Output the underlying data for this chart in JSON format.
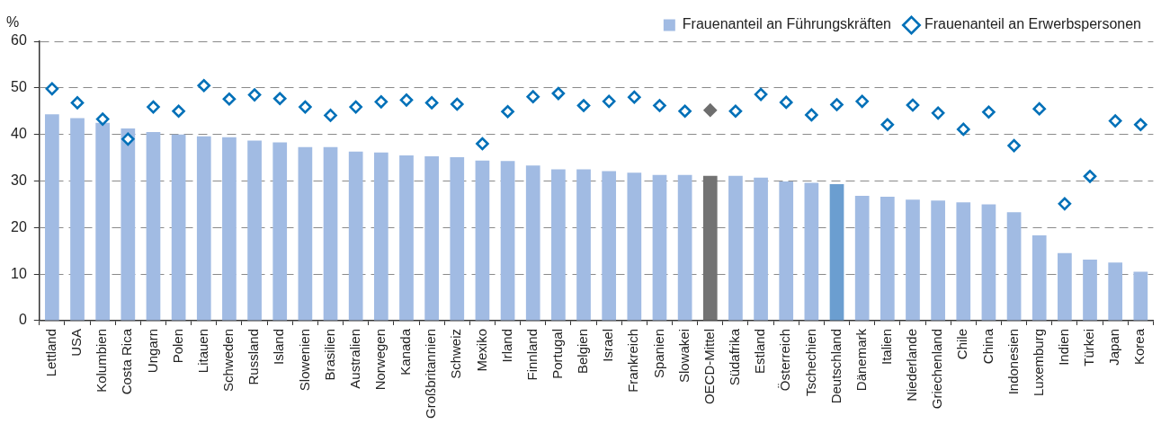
{
  "chart_data": {
    "type": "bar",
    "ylabel": "%",
    "categories": [
      "Lettland",
      "USA",
      "Kolumbien",
      "Costa Rica",
      "Ungarn",
      "Polen",
      "Litauen",
      "Schweden",
      "Russland",
      "Island",
      "Slowenien",
      "Brasilien",
      "Australien",
      "Norwegen",
      "Kanada",
      "Großbritannien",
      "Schweiz",
      "Mexiko",
      "Irland",
      "Finnland",
      "Portugal",
      "Belgien",
      "Israel",
      "Frankreich",
      "Spanien",
      "Slowakei",
      "OECD-Mittel",
      "Südafrika",
      "Estland",
      "Österreich",
      "Tschechien",
      "Deutschland",
      "Dänemark",
      "Italien",
      "Niederlande",
      "Griechenland",
      "Chile",
      "China",
      "Indonesien",
      "Luxemburg",
      "Indien",
      "Türkei",
      "Japan",
      "Korea"
    ],
    "series": [
      {
        "name": "Frauenanteil an Führungskräften",
        "color": "#a1bbe3",
        "colors": [
          "#a1bbe3",
          "#a1bbe3",
          "#a1bbe3",
          "#a1bbe3",
          "#a1bbe3",
          "#a1bbe3",
          "#a1bbe3",
          "#a1bbe3",
          "#a1bbe3",
          "#a1bbe3",
          "#a1bbe3",
          "#a1bbe3",
          "#a1bbe3",
          "#a1bbe3",
          "#a1bbe3",
          "#a1bbe3",
          "#a1bbe3",
          "#a1bbe3",
          "#a1bbe3",
          "#a1bbe3",
          "#a1bbe3",
          "#a1bbe3",
          "#a1bbe3",
          "#a1bbe3",
          "#a1bbe3",
          "#a1bbe3",
          "#737373",
          "#a1bbe3",
          "#a1bbe3",
          "#a1bbe3",
          "#a1bbe3",
          "#6b9ed0",
          "#a1bbe3",
          "#a1bbe3",
          "#a1bbe3",
          "#a1bbe3",
          "#a1bbe3",
          "#a1bbe3",
          "#a1bbe3",
          "#a1bbe3",
          "#a1bbe3",
          "#a1bbe3",
          "#a1bbe3",
          "#a1bbe3"
        ],
        "values": [
          44.3,
          43.5,
          42.5,
          41.3,
          40.5,
          40.0,
          39.6,
          39.4,
          38.7,
          38.3,
          37.3,
          37.3,
          36.3,
          36.1,
          35.5,
          35.3,
          35.1,
          34.4,
          34.3,
          33.3,
          32.5,
          32.5,
          32.1,
          31.8,
          31.3,
          31.3,
          31.1,
          31.1,
          30.7,
          29.9,
          29.6,
          29.3,
          26.8,
          26.6,
          26.0,
          25.8,
          25.4,
          25.0,
          23.3,
          18.3,
          14.5,
          13.1,
          12.5,
          10.5
        ]
      },
      {
        "name": "Frauenanteil an Erwerbspersonen",
        "type": "scatter",
        "marker": "diamond",
        "color": "#0070b8",
        "colors": [
          "#0070b8",
          "#0070b8",
          "#0070b8",
          "#0070b8",
          "#0070b8",
          "#0070b8",
          "#0070b8",
          "#0070b8",
          "#0070b8",
          "#0070b8",
          "#0070b8",
          "#0070b8",
          "#0070b8",
          "#0070b8",
          "#0070b8",
          "#0070b8",
          "#0070b8",
          "#0070b8",
          "#0070b8",
          "#0070b8",
          "#0070b8",
          "#0070b8",
          "#0070b8",
          "#0070b8",
          "#0070b8",
          "#0070b8",
          "#6e6e6e",
          "#0070b8",
          "#0070b8",
          "#0070b8",
          "#0070b8",
          "#0070b8",
          "#0070b8",
          "#0070b8",
          "#0070b8",
          "#0070b8",
          "#0070b8",
          "#0070b8",
          "#0070b8",
          "#0070b8",
          "#0070b8",
          "#0070b8",
          "#0070b8",
          "#0070b8"
        ],
        "values": [
          49.8,
          46.8,
          43.3,
          39.0,
          45.9,
          45.0,
          50.5,
          47.6,
          48.5,
          47.7,
          45.9,
          44.1,
          45.9,
          47.0,
          47.4,
          46.8,
          46.5,
          38.0,
          44.9,
          48.1,
          48.8,
          46.2,
          47.1,
          48.0,
          46.2,
          45.0,
          45.2,
          45.0,
          48.6,
          46.9,
          44.2,
          46.4,
          47.1,
          42.1,
          46.3,
          44.6,
          41.1,
          44.8,
          37.6,
          45.5,
          25.1,
          31.0,
          42.9,
          42.1
        ]
      }
    ],
    "ylim": [
      0,
      60
    ],
    "yticks": [
      0,
      10,
      20,
      30,
      40,
      50,
      60
    ],
    "grid": "y",
    "legend": "top right"
  }
}
